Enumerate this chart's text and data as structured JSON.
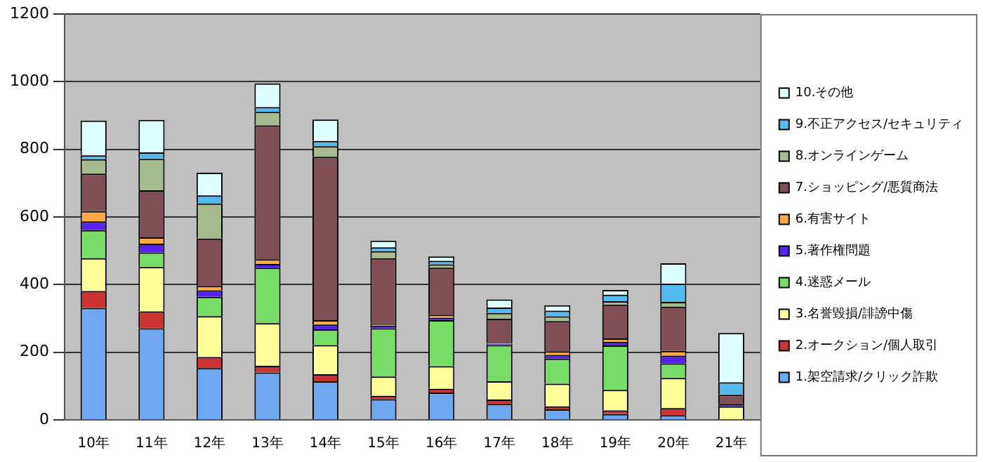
{
  "chart_data": {
    "type": "bar",
    "stacked": true,
    "categories": [
      "10年",
      "11年",
      "12年",
      "13年",
      "14年",
      "15年",
      "16年",
      "17年",
      "18年",
      "19年",
      "20年",
      "21年"
    ],
    "series": [
      {
        "name": "1.架空請求/クリック詐欺",
        "color": "#6fa8f0",
        "values": [
          331,
          271,
          153,
          140,
          114,
          61,
          81,
          47,
          31,
          17,
          14,
          0
        ]
      },
      {
        "name": "2.オークション/個人取引",
        "color": "#cc3333",
        "values": [
          50,
          50,
          33,
          20,
          21,
          10,
          11,
          13,
          9,
          11,
          21,
          null
        ]
      },
      {
        "name": "3.名誉毀損/誹謗中傷",
        "color": "#ffff99",
        "values": [
          97,
          131,
          121,
          126,
          86,
          57,
          67,
          54,
          67,
          61,
          89,
          40
        ]
      },
      {
        "name": "4.迷惑メール",
        "color": "#77dd66",
        "values": [
          83,
          43,
          57,
          164,
          47,
          143,
          136,
          107,
          74,
          131,
          43,
          0
        ]
      },
      {
        "name": "5.著作権問題",
        "color": "#5522ee",
        "values": [
          26,
          26,
          19,
          11,
          14,
          7,
          7,
          4,
          11,
          11,
          23,
          7
        ]
      },
      {
        "name": "6.有害サイト",
        "color": "#ffaa44",
        "values": [
          30,
          19,
          13,
          14,
          13,
          7,
          9,
          3,
          11,
          10,
          14,
          0
        ]
      },
      {
        "name": "7.ショッピング/悪質商法",
        "color": "#7f4f55",
        "values": [
          111,
          139,
          140,
          396,
          483,
          193,
          139,
          71,
          89,
          100,
          131,
          27
        ]
      },
      {
        "name": "8.オンラインゲーム",
        "color": "#a6bc8f",
        "values": [
          43,
          93,
          104,
          40,
          31,
          21,
          10,
          17,
          14,
          10,
          14,
          0
        ]
      },
      {
        "name": "9.不正アクセス/セキュリティ",
        "color": "#55bbee",
        "values": [
          11,
          19,
          24,
          14,
          16,
          11,
          10,
          16,
          17,
          19,
          54,
          37
        ]
      },
      {
        "name": "10.その他",
        "color": "#ddffff",
        "values": [
          103,
          96,
          67,
          70,
          63,
          20,
          13,
          24,
          16,
          14,
          60,
          146
        ]
      }
    ],
    "ylim": [
      0,
      1200
    ],
    "yticks": [
      0,
      200,
      400,
      600,
      800,
      1000,
      1200
    ],
    "grid": "y",
    "legend": "right"
  }
}
